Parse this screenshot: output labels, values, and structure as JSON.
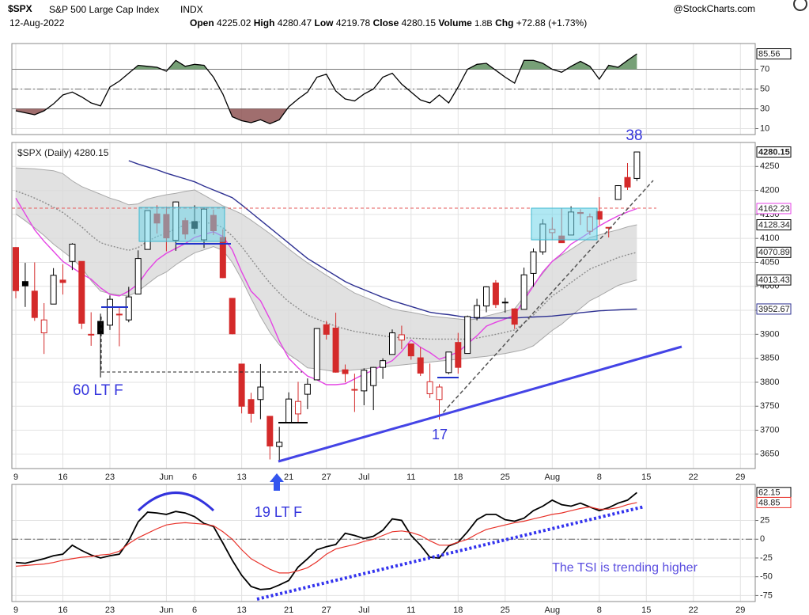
{
  "header": {
    "symbol": "$SPX",
    "name": "S&P 500 Large Cap Index",
    "exchange": "INDX",
    "source": "@StockCharts.com",
    "date": "12-Aug-2022",
    "open_label": "Open",
    "high_label": "High",
    "low_label": "Low",
    "close_label": "Close",
    "volume_label": "Volume",
    "volume": "1.8B",
    "chg_label": "Chg",
    "chg": "+72.88 (+1.73%)"
  },
  "chart_data": [
    {
      "type": "line",
      "color": "#000000",
      "values": [
        28,
        26,
        24,
        28,
        35,
        44,
        47,
        42,
        36,
        33,
        52,
        58,
        66,
        74,
        73,
        72,
        68,
        79,
        73,
        75,
        74,
        62,
        45,
        22,
        18,
        16,
        19,
        15,
        19,
        32,
        40,
        47,
        62,
        65,
        48,
        40,
        38,
        45,
        50,
        62,
        66,
        55,
        47,
        39,
        36,
        44,
        36,
        52,
        70,
        75,
        76,
        69,
        62,
        56,
        79,
        79,
        76,
        70,
        67,
        73,
        78,
        73,
        60,
        74,
        72,
        79,
        85.56
      ],
      "levels": [
        70,
        30
      ],
      "midline": 50,
      "overbought_color": "#5f8f5f",
      "oversold_color": "#8f5555",
      "ylim": [
        4,
        96
      ],
      "yticks": [
        10,
        30,
        50,
        70
      ],
      "grid": true
    },
    {
      "type": "candlestick",
      "legend": "$SPX (Daily)",
      "categories": [
        "9",
        null,
        null,
        null,
        null,
        "16",
        null,
        null,
        null,
        null,
        "23",
        null,
        null,
        null,
        null,
        null,
        "Jun",
        null,
        null,
        "6",
        null,
        null,
        null,
        null,
        "13",
        null,
        null,
        null,
        null,
        "21",
        null,
        null,
        null,
        "27",
        null,
        null,
        null,
        "Jul",
        null,
        null,
        null,
        null,
        "11",
        null,
        null,
        null,
        null,
        "18",
        null,
        null,
        null,
        null,
        "25",
        null,
        null,
        null,
        null,
        "Aug",
        null,
        null,
        null,
        null,
        "8",
        null,
        null,
        null,
        null,
        "15",
        null,
        null,
        null,
        null,
        "22",
        null,
        null,
        null,
        null,
        "29",
        null
      ],
      "open": [
        4081,
        4010,
        3990,
        3903,
        3963,
        4013,
        4052,
        4052,
        3900,
        3927,
        3919,
        3942,
        3930,
        3984,
        4077,
        4151,
        4150,
        4096,
        4137,
        4135,
        4097,
        4148,
        4102,
        3975,
        3838,
        3764,
        3764,
        3729,
        3666,
        3715,
        3734,
        3775,
        3805,
        3920,
        3913,
        3826,
        3785,
        3782,
        3793,
        3831,
        3858,
        3888,
        3880,
        3851,
        3776,
        3764,
        3820,
        3883,
        3860,
        3935,
        3959,
        4007,
        3966,
        3953,
        3952,
        4027,
        4072,
        4112,
        4105,
        4107,
        4154,
        4115,
        4156,
        4123,
        4181,
        4227,
        4225.02,
        null,
        null,
        null,
        null,
        null,
        null,
        null,
        null,
        null,
        null,
        null,
        null
      ],
      "high": [
        4082,
        4049,
        4050,
        3965,
        4038,
        4046,
        4090,
        4052,
        3946,
        3943,
        3981,
        3955,
        3999,
        4075,
        4158,
        4169,
        4166,
        4177,
        4143,
        4169,
        4164,
        4160,
        4119,
        3975,
        3838,
        3778,
        3838,
        3729,
        3707,
        3779,
        3801,
        3808,
        3913,
        3928,
        3945,
        3837,
        3818,
        3829,
        3832,
        3850,
        3910,
        3918,
        3880,
        3873,
        3839,
        3796,
        3863,
        3903,
        3939,
        3974,
        4000,
        4013,
        3976,
        3954,
        4039,
        4079,
        4140,
        4144,
        4163,
        4167,
        4161,
        4152,
        4186,
        4123,
        4211,
        4257,
        4280.47,
        null,
        null,
        null,
        null,
        null,
        null,
        null,
        null,
        null,
        null,
        null,
        null
      ],
      "low": [
        3975,
        3957,
        3928,
        3859,
        3963,
        3983,
        4034,
        3911,
        3876,
        3810,
        3909,
        3875,
        3925,
        3984,
        4077,
        4110,
        4073,
        4074,
        4098,
        4109,
        4080,
        4107,
        4017,
        3900,
        3735,
        3716,
        3723,
        3639,
        3637,
        3715,
        3717,
        3744,
        3805,
        3889,
        3820,
        3800,
        3738,
        3752,
        3742,
        3807,
        3858,
        3869,
        3847,
        3813,
        3767,
        3722,
        3817,
        3818,
        3860,
        3929,
        3946,
        3955,
        3945,
        3911,
        3952,
        3999,
        4066,
        4097,
        4091,
        4107,
        4128,
        4107,
        4128,
        4102,
        4181,
        4201,
        4219.78,
        null,
        null,
        null,
        null,
        null,
        null,
        null,
        null,
        null,
        null,
        null,
        null
      ],
      "close": [
        3991,
        4001,
        3935,
        3930,
        4023,
        4008,
        4088,
        3923,
        3900,
        3901,
        3973,
        3941,
        3978,
        4058,
        4158,
        4132,
        4101,
        4176,
        4109,
        4121,
        4161,
        4116,
        4018,
        3901,
        3750,
        3735,
        3790,
        3667,
        3675,
        3765,
        3760,
        3796,
        3912,
        3900,
        3821,
        3818,
        3785,
        3825,
        3831,
        3845,
        3903,
        3899,
        3855,
        3819,
        3801,
        3790,
        3863,
        3831,
        3937,
        3960,
        3999,
        3962,
        3967,
        3921,
        4024,
        4072,
        4130,
        4119,
        4091,
        4155,
        4152,
        4145,
        4140,
        4122,
        4210,
        4207,
        4280.15,
        null,
        null,
        null,
        null,
        null,
        null,
        null,
        null,
        null,
        null,
        null,
        null
      ],
      "up_color": "#000000",
      "down_color": "#d42a2a",
      "bands": {
        "color": "#d9d9d9",
        "line_color": "#a8a8a8",
        "upper": [
          4247,
          4246,
          4245,
          4243,
          4241,
          4235,
          4220,
          4208,
          4200,
          4192,
          4184,
          4178,
          4170,
          4172,
          4182,
          4187,
          4191,
          4194,
          4198,
          4201,
          4190,
          4179,
          4168,
          4160,
          4151,
          4138,
          4124,
          4110,
          4094,
          4078,
          4063,
          4049,
          4036,
          4023,
          4011,
          3998,
          3986,
          3978,
          3970,
          3961,
          3953,
          3949,
          3946,
          3942,
          3938,
          3936,
          3934,
          3932,
          3930,
          3932,
          3938,
          3943,
          3948,
          3953,
          3978,
          4003,
          4027,
          4052,
          4065,
          4077,
          4090,
          4102,
          4107,
          4113,
          4118,
          4124,
          4128.34,
          null,
          null,
          null,
          null,
          null,
          null,
          null,
          null,
          null,
          null,
          null,
          null
        ],
        "lower": [
          4151,
          4137,
          4122,
          4106,
          4088,
          4073,
          4058,
          4039,
          4012,
          3990,
          3985,
          3982,
          3980,
          3990,
          4005,
          4020,
          4030,
          4045,
          4058,
          4070,
          4076,
          4083,
          4075,
          4050,
          4015,
          3975,
          3937,
          3904,
          3878,
          3858,
          3845,
          3830,
          3828,
          3825,
          3822,
          3824,
          3826,
          3828,
          3830,
          3832,
          3834,
          3836,
          3838,
          3840,
          3842,
          3844,
          3846,
          3848,
          3850,
          3852,
          3854,
          3857,
          3860,
          3864,
          3868,
          3876,
          3892,
          3908,
          3921,
          3938,
          3954,
          3970,
          3980,
          3991,
          4002,
          4008,
          4013.43,
          null,
          null,
          null,
          null,
          null,
          null,
          null,
          null,
          null,
          null,
          null,
          null
        ]
      },
      "series": [
        {
          "color": "#8c8c8c",
          "style": "dotted",
          "values": [
            4199,
            4192,
            4184,
            4175,
            4165,
            4154,
            4139,
            4124,
            4106,
            4091,
            4085,
            4080,
            4075,
            4081,
            4094,
            4104,
            4111,
            4120,
            4128,
            4136,
            4133,
            4131,
            4122,
            4105,
            4083,
            4057,
            4031,
            4007,
            3986,
            3968,
            3954,
            3940,
            3932,
            3924,
            3917,
            3911,
            3906,
            3903,
            3900,
            3897,
            3894,
            3893,
            3892,
            3891,
            3890,
            3890,
            3890,
            3890,
            3890,
            3892,
            3896,
            3900,
            3904,
            3909,
            3923,
            3940,
            3960,
            3980,
            3993,
            4008,
            4022,
            4036,
            4044,
            4052,
            4060,
            4066,
            4070.89,
            null,
            null,
            null,
            null,
            null,
            null,
            null,
            null,
            null,
            null,
            null,
            null
          ]
        },
        {
          "color": "#e444e4",
          "style": "solid",
          "values": [
            4184,
            4151,
            4118,
            4094,
            4073,
            4052,
            4039,
            4026,
            4015,
            3997,
            3983,
            3980,
            3990,
            4005,
            4033,
            4055,
            4069,
            4079,
            4089,
            4102,
            4108,
            4114,
            4104,
            4076,
            4030,
            3990,
            3970,
            3932,
            3886,
            3850,
            3830,
            3813,
            3805,
            3795,
            3795,
            3797,
            3807,
            3817,
            3825,
            3836,
            3845,
            3864,
            3888,
            3873,
            3862,
            3848,
            3855,
            3863,
            3880,
            3897,
            3917,
            3925,
            3932,
            3940,
            3971,
            4001,
            4030,
            4052,
            4068,
            4088,
            4100,
            4113,
            4126,
            4137,
            4147,
            4155,
            4162.23,
            null,
            null,
            null,
            null,
            null,
            null,
            null,
            null,
            null,
            null,
            null,
            null
          ]
        },
        {
          "color": "#2e3192",
          "style": "solid",
          "values": [
            null,
            null,
            null,
            null,
            null,
            null,
            null,
            null,
            null,
            null,
            null,
            null,
            4262,
            4255,
            4249,
            4243,
            4236,
            4230,
            4224,
            4218,
            4209,
            4201,
            4193,
            4185,
            4170,
            4154,
            4138,
            4122,
            4106,
            4090,
            4074,
            4058,
            4046,
            4034,
            4022,
            4010,
            4001,
            3993,
            3985,
            3977,
            3970,
            3964,
            3958,
            3952,
            3946,
            3943,
            3941,
            3938,
            3935,
            3934,
            3934,
            3934,
            3934,
            3934,
            3935,
            3936,
            3937,
            3938,
            3940,
            3942,
            3945,
            3947,
            3949,
            3950,
            3951,
            3952,
            3952.67,
            null,
            null,
            null,
            null,
            null,
            null,
            null,
            null,
            null,
            null,
            null,
            null
          ]
        }
      ],
      "annotations": [
        "38",
        "60 LT F",
        "17",
        "19 LT F"
      ],
      "ylim": [
        3620,
        4300
      ],
      "yticks": [
        3650,
        3700,
        3750,
        3800,
        3850,
        3900,
        3950,
        4000,
        4050,
        4100,
        4150,
        4200,
        4250
      ],
      "grid": true
    },
    {
      "type": "line",
      "categories": [
        "9",
        null,
        null,
        null,
        null,
        "16",
        null,
        null,
        null,
        null,
        "23",
        null,
        null,
        null,
        null,
        null,
        "Jun",
        null,
        null,
        "6",
        null,
        null,
        null,
        null,
        "13",
        null,
        null,
        null,
        null,
        "21",
        null,
        null,
        null,
        "27",
        null,
        null,
        null,
        "Jul",
        null,
        null,
        null,
        null,
        "11",
        null,
        null,
        null,
        null,
        "18",
        null,
        null,
        null,
        null,
        "25",
        null,
        null,
        null,
        null,
        "Aug",
        null,
        null,
        null,
        null,
        "8",
        null,
        null,
        null,
        null,
        "15",
        null,
        null,
        null,
        null,
        "22",
        null,
        null,
        null,
        null,
        "29",
        null
      ],
      "series": [
        {
          "color": "#000000",
          "values": [
            -31,
            -32,
            -29,
            -26,
            -22,
            -20,
            -8,
            -15,
            -21,
            -25,
            -22,
            -20,
            -2,
            23,
            36,
            35,
            33,
            37,
            35,
            30,
            21,
            17,
            -5,
            -28,
            -48,
            -63,
            -67,
            -66,
            -61,
            -55,
            -37,
            -26,
            -14,
            -10,
            -7,
            8,
            5,
            1,
            4,
            12,
            27,
            25,
            5,
            -8,
            -24,
            -25,
            -9,
            -4,
            10,
            26,
            33,
            33,
            26,
            24,
            28,
            38,
            44,
            52,
            46,
            44,
            48,
            43,
            38,
            42,
            48,
            52,
            62.15,
            null,
            null,
            null,
            null,
            null,
            null,
            null,
            null,
            null,
            null,
            null,
            null
          ]
        },
        {
          "color": "#e8322a",
          "values": [
            -36,
            -35,
            -34,
            -33,
            -31,
            -28,
            -26,
            -24,
            -23,
            -21,
            -20,
            -16,
            -6,
            2,
            8,
            14,
            19,
            21,
            22,
            21,
            20,
            18,
            10,
            0,
            -14,
            -26,
            -33,
            -40,
            -45,
            -45,
            -42,
            -38,
            -30,
            -20,
            -13,
            -10,
            -7,
            -3,
            0,
            5,
            10,
            11,
            9,
            5,
            -2,
            -8,
            -8,
            -4,
            0,
            7,
            13,
            16,
            19,
            22,
            24,
            27,
            30,
            33,
            35,
            38,
            41,
            43,
            40,
            40,
            42,
            46,
            48.85,
            null,
            null,
            null,
            null,
            null,
            null,
            null,
            null,
            null,
            null,
            null,
            null
          ]
        }
      ],
      "zero_line": true,
      "annotation": "The TSI is trending higher",
      "ylim": [
        -83,
        73
      ],
      "yticks": [
        -75,
        -50,
        -25,
        0,
        25
      ],
      "grid": true
    }
  ]
}
